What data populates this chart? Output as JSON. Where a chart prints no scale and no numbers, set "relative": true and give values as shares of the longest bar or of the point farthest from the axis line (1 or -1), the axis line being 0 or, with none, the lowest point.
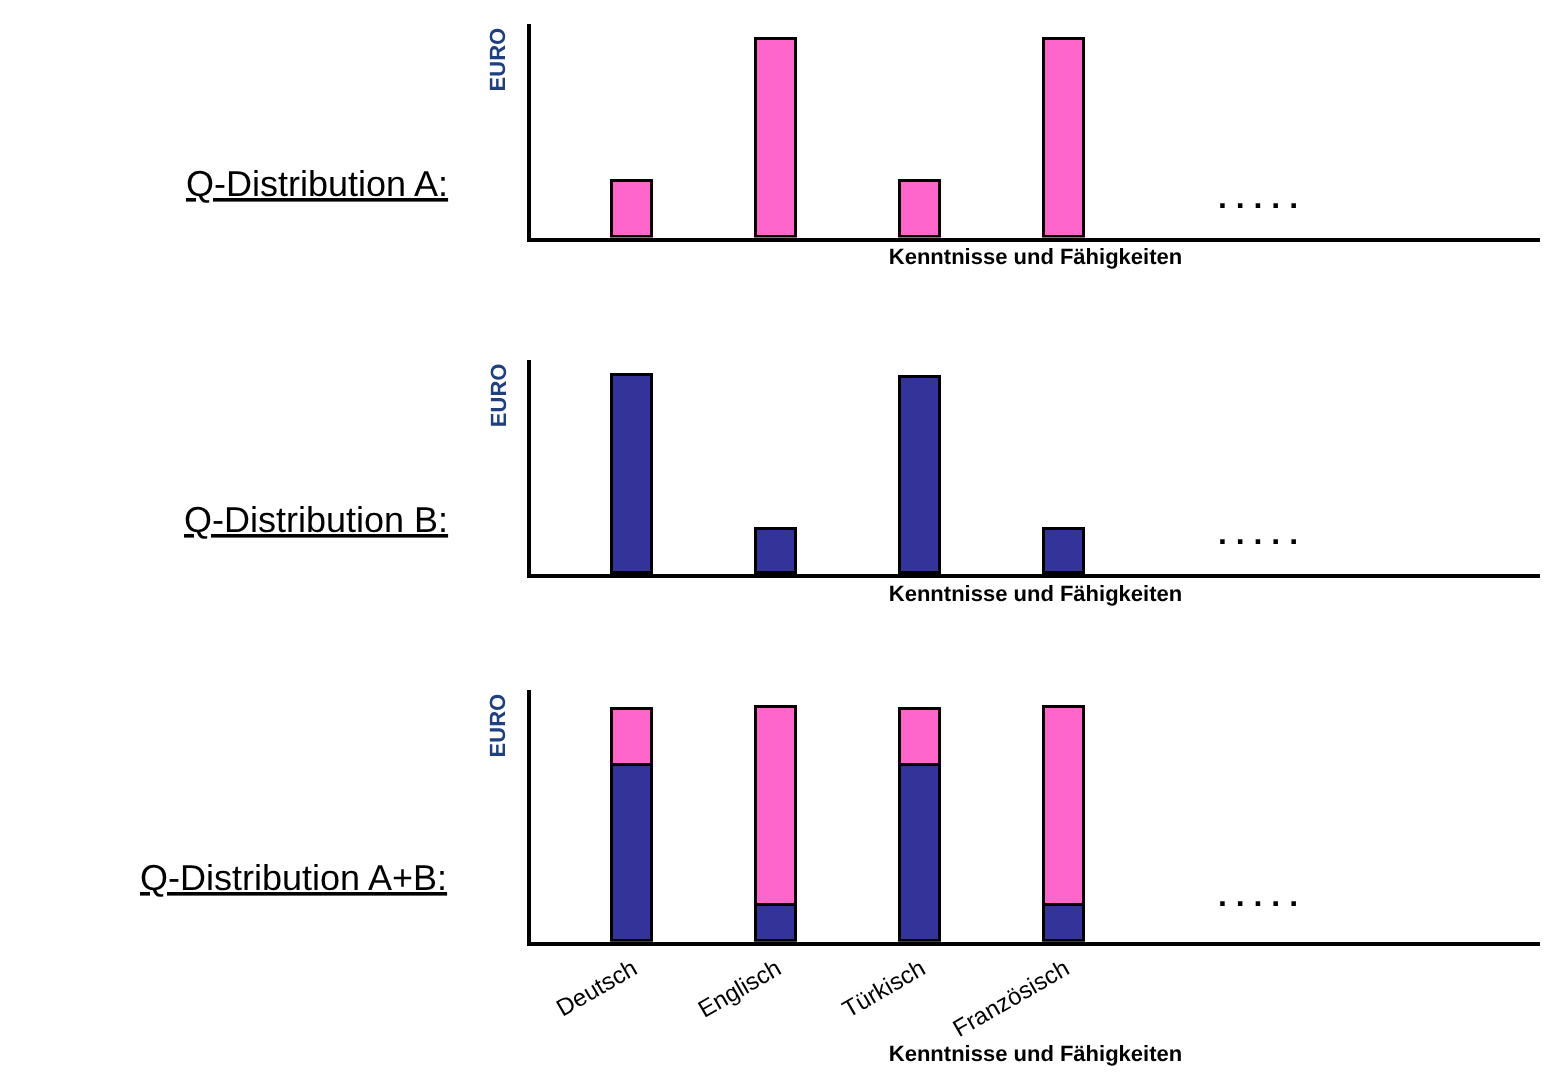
{
  "chart_data": [
    {
      "type": "bar",
      "title": "Q-Distribution A:",
      "ylabel": "EURO",
      "xlabel": "Kenntnisse und Fähigkeiten",
      "relative": true,
      "categories": [
        null,
        null,
        null,
        null
      ],
      "series": [
        {
          "color": "#ff66cc",
          "values": [
            0.28,
            1,
            0.28,
            1
          ]
        }
      ],
      "annotations": [
        ". . . . ."
      ]
    },
    {
      "type": "bar",
      "title": "Q-Distribution B:",
      "ylabel": "EURO",
      "xlabel": "Kenntnisse und Fähigkeiten",
      "relative": true,
      "categories": [
        null,
        null,
        null,
        null
      ],
      "series": [
        {
          "color": "#333399",
          "values": [
            1,
            0.23,
            0.99,
            0.23
          ]
        }
      ],
      "annotations": [
        ". . . . ."
      ]
    },
    {
      "type": "bar",
      "title": "Q-Distribution A+B:",
      "ylabel": "EURO",
      "xlabel": "Kenntnisse und Fähigkeiten",
      "relative": true,
      "stacked": true,
      "tick_labels": "x",
      "categories": [
        "Deutsch",
        "Englisch",
        "Türkisch",
        "Französisch"
      ],
      "series": [
        {
          "color": "#333399",
          "values": [
            0.75,
            0.15,
            0.75,
            0.15
          ]
        },
        {
          "color": "#ff66cc",
          "values": [
            0.24,
            0.85,
            0.24,
            0.85
          ]
        }
      ],
      "annotations": [
        ". . . . ."
      ]
    }
  ]
}
